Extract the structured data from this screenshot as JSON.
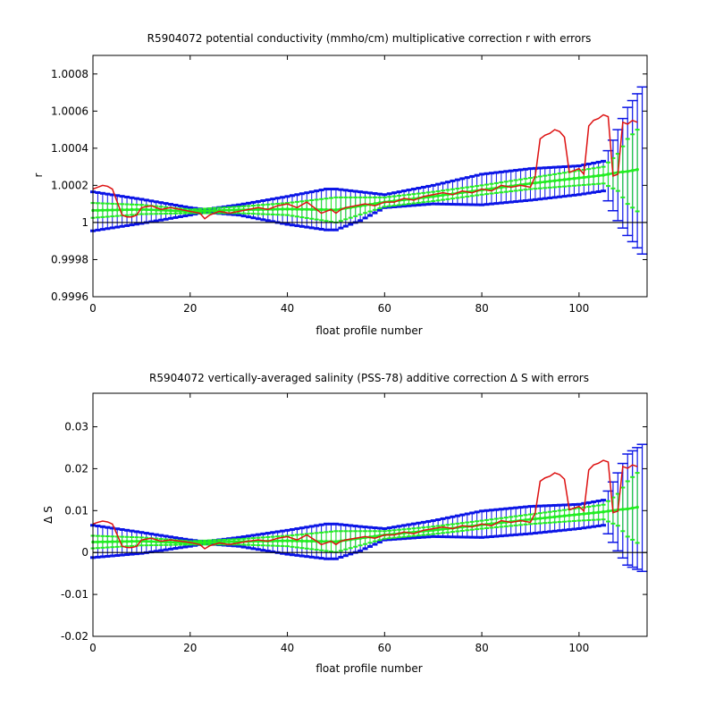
{
  "colors": {
    "background": "#ffffff",
    "axes": "#000000",
    "blue_band": "#0a14e6",
    "green_band": "#22ee22",
    "red_line": "#dd1111",
    "zero_line": "#000000"
  },
  "chart_data": [
    {
      "type": "line",
      "title": "R5904072 potential conductivity (mmho/cm) multiplicative correction r with errors",
      "xlabel": "float profile number",
      "ylabel": "r",
      "xlim": [
        0,
        114
      ],
      "ylim": [
        0.9996,
        1.0009
      ],
      "xticks": [
        0,
        20,
        40,
        60,
        80,
        100
      ],
      "xtick_labels": [
        "0",
        "20",
        "40",
        "60",
        "80",
        "100"
      ],
      "yticks": [
        0.9996,
        0.9998,
        1.0,
        1.0002,
        1.0004,
        1.0006,
        1.0008
      ],
      "ytick_labels": [
        "0.9996",
        "0.9998",
        "1",
        "1.0002",
        "1.0004",
        "1.0006",
        "1.0008"
      ],
      "grid": false,
      "reference_line": 1.0,
      "series": [
        {
          "role": "correction_r",
          "color": "#22ee22",
          "x": [
            0,
            10,
            20,
            30,
            40,
            50,
            60,
            70,
            80,
            90,
            100,
            105,
            108,
            110,
            112
          ],
          "y": [
            1.000065,
            1.00007,
            1.00006,
            1.000068,
            1.000072,
            1.000068,
            1.00011,
            1.00014,
            1.000175,
            1.00021,
            1.00024,
            1.000255,
            1.00027,
            1.000275,
            1.000285
          ]
        },
        {
          "role": "error_band_upper",
          "color": "#22ee22",
          "x": [
            0,
            10,
            20,
            30,
            40,
            50,
            60,
            70,
            80,
            90,
            100,
            105,
            108,
            110,
            112
          ],
          "y": [
            1.000105,
            1.000095,
            1.00007,
            1.000085,
            1.000105,
            1.000135,
            1.000135,
            1.000165,
            1.0002,
            1.00024,
            1.00028,
            1.0003,
            1.00037,
            1.00045,
            1.0005
          ]
        },
        {
          "role": "error_band_lower",
          "color": "#22ee22",
          "x": [
            0,
            10,
            20,
            30,
            40,
            50,
            60,
            70,
            80,
            90,
            100,
            105,
            108,
            110,
            112
          ],
          "y": [
            1.000025,
            1.000045,
            1.00005,
            1.00005,
            1.00004,
            1.0,
            1.000085,
            1.000115,
            1.00015,
            1.00018,
            1.0002,
            1.00021,
            1.00017,
            1.0001,
            1.00006
          ]
        },
        {
          "role": "blue_upper",
          "color": "#0a14e6",
          "x": [
            0,
            10,
            20,
            23,
            30,
            40,
            48,
            50,
            55,
            60,
            70,
            80,
            90,
            100,
            105,
            108,
            110,
            113
          ],
          "y": [
            1.000165,
            1.000125,
            1.00008,
            1.00007,
            1.000095,
            1.00014,
            1.00018,
            1.00018,
            1.000165,
            1.00015,
            1.0002,
            1.00026,
            1.00029,
            1.000305,
            1.00033,
            1.0005,
            1.00062,
            1.00073
          ]
        },
        {
          "role": "blue_lower",
          "color": "#0a14e6",
          "x": [
            0,
            10,
            20,
            23,
            30,
            40,
            48,
            50,
            55,
            60,
            70,
            80,
            90,
            100,
            105,
            108,
            110,
            113
          ],
          "y": [
            0.999955,
            0.999995,
            1.00004,
            1.000055,
            1.00004,
            0.99999,
            0.99996,
            0.99996,
            1.00001,
            1.00008,
            1.0001,
            1.000095,
            1.00012,
            1.00015,
            1.00017,
            1.00001,
            0.99993,
            0.99983
          ]
        },
        {
          "role": "float_estimate",
          "color": "#dd1111",
          "x": [
            0,
            1,
            2,
            3,
            4,
            5,
            6,
            7,
            8,
            9,
            10,
            12,
            14,
            16,
            18,
            20,
            22,
            23,
            24,
            26,
            28,
            30,
            32,
            34,
            36,
            38,
            40,
            42,
            44,
            46,
            47,
            48,
            49,
            50,
            51,
            52,
            54,
            56,
            58,
            60,
            62,
            64,
            66,
            68,
            70,
            72,
            74,
            76,
            78,
            80,
            82,
            84,
            86,
            88,
            90,
            91,
            92,
            93,
            94,
            95,
            96,
            97,
            98,
            99,
            100,
            101,
            102,
            103,
            104,
            105,
            106,
            107,
            108,
            109,
            110,
            111,
            112
          ],
          "y": [
            1.00018,
            1.00019,
            1.0002,
            1.000195,
            1.00018,
            1.00011,
            1.00004,
            1.00003,
            1.00003,
            1.00004,
            1.00008,
            1.00009,
            1.00007,
            1.00008,
            1.00007,
            1.00006,
            1.00005,
            1.00002,
            1.00004,
            1.00006,
            1.00005,
            1.00006,
            1.00007,
            1.00008,
            1.00007,
            1.00009,
            1.0001,
            1.00008,
            1.00011,
            1.00007,
            1.00005,
            1.00006,
            1.00007,
            1.00005,
            1.00007,
            1.00008,
            1.00009,
            1.0001,
            1.00009,
            1.00011,
            1.00011,
            1.00013,
            1.00012,
            1.00014,
            1.00015,
            1.00016,
            1.00015,
            1.00017,
            1.00016,
            1.00018,
            1.00017,
            1.0002,
            1.00019,
            1.0002,
            1.00019,
            1.00025,
            1.00045,
            1.00047,
            1.00048,
            1.0005,
            1.00049,
            1.00046,
            1.00027,
            1.00028,
            1.00029,
            1.00026,
            1.00052,
            1.00055,
            1.00056,
            1.00058,
            1.00057,
            1.00025,
            1.00026,
            1.00054,
            1.00053,
            1.00055,
            1.00054
          ]
        }
      ]
    },
    {
      "type": "line",
      "title": "R5904072 vertically-averaged salinity (PSS-78) additive correction Δ S with errors",
      "xlabel": "float profile number",
      "ylabel": "Δ S",
      "xlim": [
        0,
        114
      ],
      "ylim": [
        -0.02,
        0.038
      ],
      "xticks": [
        0,
        20,
        40,
        60,
        80,
        100
      ],
      "xtick_labels": [
        "0",
        "20",
        "40",
        "60",
        "80",
        "100"
      ],
      "yticks": [
        -0.02,
        -0.01,
        0,
        0.01,
        0.02,
        0.03
      ],
      "ytick_labels": [
        "-0.02",
        "-0.01",
        "0",
        "0.01",
        "0.02",
        "0.03"
      ],
      "grid": false,
      "reference_line": 0,
      "series": [
        {
          "role": "correction_dS",
          "color": "#22ee22",
          "x": [
            0,
            10,
            20,
            30,
            40,
            50,
            60,
            70,
            80,
            90,
            100,
            105,
            108,
            110,
            112
          ],
          "y": [
            0.0025,
            0.0027,
            0.0023,
            0.0026,
            0.0028,
            0.0026,
            0.0042,
            0.0053,
            0.0066,
            0.0079,
            0.0091,
            0.0097,
            0.0102,
            0.0104,
            0.0108
          ]
        },
        {
          "role": "error_band_upper",
          "color": "#22ee22",
          "x": [
            0,
            10,
            20,
            30,
            40,
            50,
            60,
            70,
            80,
            90,
            100,
            105,
            108,
            110,
            112
          ],
          "y": [
            0.004,
            0.0036,
            0.0027,
            0.0032,
            0.004,
            0.0051,
            0.0051,
            0.0062,
            0.0076,
            0.0091,
            0.0106,
            0.0114,
            0.014,
            0.017,
            0.019
          ]
        },
        {
          "role": "error_band_lower",
          "color": "#22ee22",
          "x": [
            0,
            10,
            20,
            30,
            40,
            50,
            60,
            70,
            80,
            90,
            100,
            105,
            108,
            110,
            112
          ],
          "y": [
            0.001,
            0.0017,
            0.0019,
            0.0019,
            0.0015,
            0.0001,
            0.0033,
            0.0044,
            0.0057,
            0.0068,
            0.0076,
            0.0079,
            0.0064,
            0.0038,
            0.0023
          ]
        },
        {
          "role": "blue_upper",
          "color": "#0a14e6",
          "x": [
            0,
            10,
            20,
            23,
            30,
            40,
            48,
            50,
            55,
            60,
            70,
            80,
            90,
            100,
            105,
            108,
            110,
            113
          ],
          "y": [
            0.0065,
            0.0048,
            0.003,
            0.0026,
            0.0036,
            0.0053,
            0.0068,
            0.0068,
            0.0062,
            0.0057,
            0.0076,
            0.0099,
            0.011,
            0.0115,
            0.0125,
            0.019,
            0.0235,
            0.0258
          ]
        },
        {
          "role": "blue_lower",
          "color": "#0a14e6",
          "x": [
            0,
            10,
            20,
            23,
            30,
            40,
            48,
            50,
            55,
            60,
            70,
            80,
            90,
            100,
            105,
            108,
            110,
            113
          ],
          "y": [
            -0.0012,
            -0.0002,
            0.0015,
            0.0021,
            0.0015,
            -0.0004,
            -0.0015,
            -0.0015,
            0.0004,
            0.003,
            0.0038,
            0.0036,
            0.0045,
            0.0057,
            0.0065,
            0.0004,
            -0.003,
            -0.0045
          ]
        },
        {
          "role": "float_estimate",
          "color": "#dd1111",
          "x": [
            0,
            1,
            2,
            3,
            4,
            5,
            6,
            7,
            8,
            9,
            10,
            12,
            14,
            16,
            18,
            20,
            22,
            23,
            24,
            26,
            28,
            30,
            32,
            34,
            36,
            38,
            40,
            42,
            44,
            46,
            47,
            48,
            49,
            50,
            51,
            52,
            54,
            56,
            58,
            60,
            62,
            64,
            66,
            68,
            70,
            72,
            74,
            76,
            78,
            80,
            82,
            84,
            86,
            88,
            90,
            91,
            92,
            93,
            94,
            95,
            96,
            97,
            98,
            99,
            100,
            101,
            102,
            103,
            104,
            105,
            106,
            107,
            108,
            109,
            110,
            111,
            112
          ],
          "y": [
            0.0068,
            0.0072,
            0.0075,
            0.0073,
            0.0068,
            0.0042,
            0.0015,
            0.0012,
            0.0012,
            0.0015,
            0.003,
            0.0034,
            0.0027,
            0.003,
            0.0027,
            0.0024,
            0.0019,
            0.0009,
            0.0016,
            0.0023,
            0.0019,
            0.0023,
            0.0027,
            0.003,
            0.0027,
            0.0034,
            0.0038,
            0.003,
            0.0042,
            0.0027,
            0.0019,
            0.0023,
            0.0027,
            0.0019,
            0.0027,
            0.003,
            0.0034,
            0.0038,
            0.0034,
            0.0042,
            0.0042,
            0.0049,
            0.0045,
            0.0053,
            0.0057,
            0.0061,
            0.0057,
            0.0064,
            0.0061,
            0.0068,
            0.0064,
            0.0076,
            0.0072,
            0.0076,
            0.0072,
            0.0095,
            0.017,
            0.0178,
            0.0182,
            0.019,
            0.0186,
            0.0175,
            0.0102,
            0.0106,
            0.011,
            0.0099,
            0.0197,
            0.0209,
            0.0213,
            0.022,
            0.0216,
            0.0095,
            0.0099,
            0.0205,
            0.0201,
            0.0209,
            0.0205
          ]
        }
      ]
    }
  ]
}
